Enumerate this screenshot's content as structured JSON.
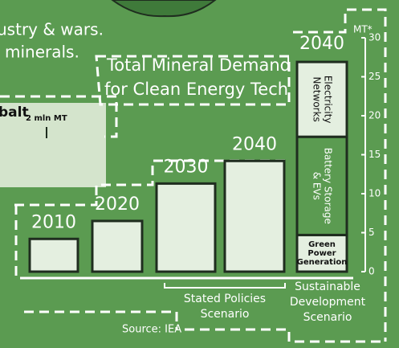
{
  "fragments": {
    "top_lines": [
      "ustry & wars.",
      "minerals."
    ],
    "panel_label": "balt",
    "panel_scale": "2 mln MT"
  },
  "chart_data": {
    "type": "bar",
    "title_lines": [
      "Total Mineral Demand",
      "for Clean Energy Tech"
    ],
    "y_label": "MT*",
    "categories": [
      "2010",
      "2020",
      "2030",
      "2040"
    ],
    "values": [
      4.2,
      6.5,
      11.3,
      14.2
    ],
    "color": "#e4efe0",
    "ylim": [
      0,
      30
    ],
    "yticks": [
      0,
      5,
      10,
      15,
      20,
      25,
      30
    ],
    "scenario_bar": {
      "category": "2040",
      "segments": [
        {
          "name_lines": [
            "Green",
            "Power",
            "Generation"
          ],
          "value": 4.7,
          "color": "#e4efe0"
        },
        {
          "name_lines": [
            "Battery Storage",
            "& EVs"
          ],
          "value": 12.6,
          "color": "#5b9b51"
        },
        {
          "name_lines": [
            "Electricity",
            "Networks"
          ],
          "value": 9.6,
          "color": "#e4efe0"
        }
      ]
    },
    "group_labels": [
      {
        "lines": [
          "Stated Policies",
          "Scenario"
        ]
      },
      {
        "lines": [
          "Sustainable",
          "Development",
          "Scenario"
        ]
      }
    ],
    "source": "Source: IEA"
  }
}
